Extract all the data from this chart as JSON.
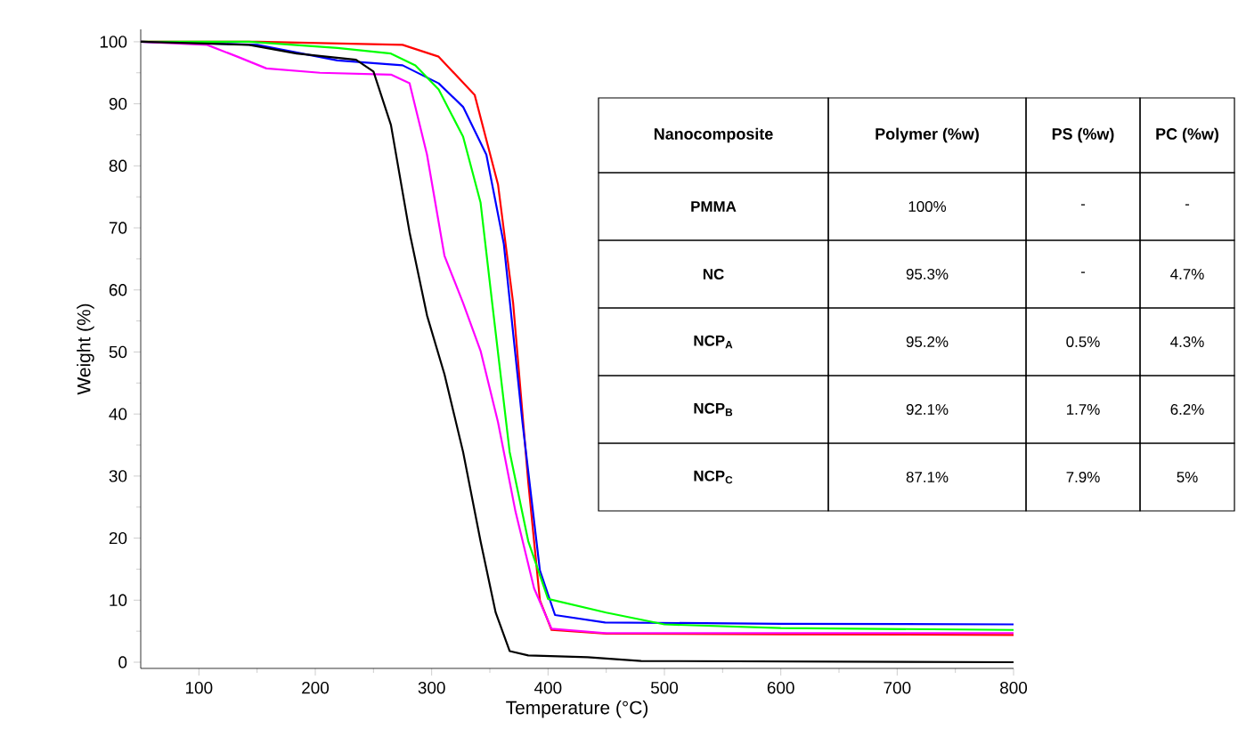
{
  "chart_data": {
    "type": "line",
    "xlabel": "Temperature (°C)",
    "ylabel": "Weight (%)",
    "xlim": [
      50,
      800
    ],
    "ylim": [
      -1,
      102
    ],
    "xticks": [
      100,
      {
        "value": 150,
        "label": null
      },
      200,
      {
        "value": 250,
        "label": null
      },
      300,
      {
        "value": 350,
        "label": null
      },
      400,
      {
        "value": 450,
        "label": null
      },
      500,
      {
        "value": 550,
        "label": null
      },
      600,
      {
        "value": 650,
        "label": null
      },
      700,
      {
        "value": 750,
        "label": null
      },
      800
    ],
    "yticks": [
      0,
      {
        "value": 5,
        "label": null
      },
      10,
      {
        "value": 15,
        "label": null
      },
      20,
      {
        "value": 25,
        "label": null
      },
      30,
      {
        "value": 35,
        "label": null
      },
      40,
      {
        "value": 45,
        "label": null
      },
      50,
      {
        "value": 55,
        "label": null
      },
      60,
      {
        "value": 65,
        "label": null
      },
      70,
      {
        "value": 75,
        "label": null
      },
      80,
      {
        "value": 85,
        "label": null
      },
      90,
      {
        "value": 95,
        "label": null
      },
      100
    ],
    "line_style": "solid",
    "series": [
      {
        "color": "#ff0000",
        "x": [
          50,
          150,
          275,
          306,
          337,
          357,
          370,
          383,
          393,
          403,
          450,
          600,
          800
        ],
        "values": [
          100,
          100,
          99.5,
          97.6,
          91.4,
          77,
          57.9,
          29,
          10,
          5.2,
          4.6,
          4.5,
          4.4
        ]
      },
      {
        "color": "#0000ff",
        "x": [
          50,
          150,
          219,
          275,
          306,
          327,
          347,
          362,
          378,
          393,
          406,
          449,
          600,
          800
        ],
        "values": [
          100,
          99.5,
          97,
          96.2,
          93.3,
          89.5,
          81.8,
          67.4,
          38.7,
          14.8,
          7.6,
          6.4,
          6.2,
          6.1
        ]
      },
      {
        "color": "#00ff00",
        "x": [
          50,
          143,
          219,
          265,
          286,
          306,
          327,
          342,
          352,
          367,
          383,
          400,
          450,
          500,
          600,
          800
        ],
        "values": [
          100,
          100,
          99,
          98.1,
          96.2,
          92.3,
          84.7,
          74.1,
          57.9,
          33.9,
          19.5,
          10.2,
          8,
          6.1,
          5.5,
          5.2
        ]
      },
      {
        "color": "#ff00ff",
        "x": [
          50,
          107,
          133,
          158,
          204,
          265,
          281,
          296,
          311,
          327,
          342,
          357,
          372,
          388,
          403,
          449,
          800
        ],
        "values": [
          100,
          99.5,
          97.6,
          95.7,
          95,
          94.7,
          93.3,
          81.8,
          65.5,
          57.9,
          50.2,
          38.7,
          24.3,
          11.9,
          5.4,
          4.7,
          4.7
        ]
      },
      {
        "color": "#000000",
        "x": [
          50,
          143,
          184,
          235,
          250,
          265,
          281,
          296,
          311,
          327,
          342,
          355,
          367,
          383,
          434,
          480,
          800
        ],
        "values": [
          100,
          99.5,
          98.1,
          97.1,
          95.2,
          86.6,
          69.3,
          55.9,
          46.4,
          33.9,
          19.5,
          8,
          1.8,
          1.1,
          0.8,
          0.2,
          0
        ]
      }
    ],
    "annotations": [
      "Nanocomposite",
      "Polymer (%w)",
      "PS (%w)",
      "PC (%w)",
      "PMMA",
      "100%",
      "-",
      "-",
      "NC",
      "95.3%",
      "-",
      "4.7%",
      "NCP$_{A}$",
      "95.2%",
      "0.5%",
      "4.3%",
      "NCP$_{B}$",
      "92.1%",
      "1.7%",
      "6.2%",
      "NCP$_{C}$",
      "87.1%",
      "7.9%",
      "5%"
    ]
  }
}
